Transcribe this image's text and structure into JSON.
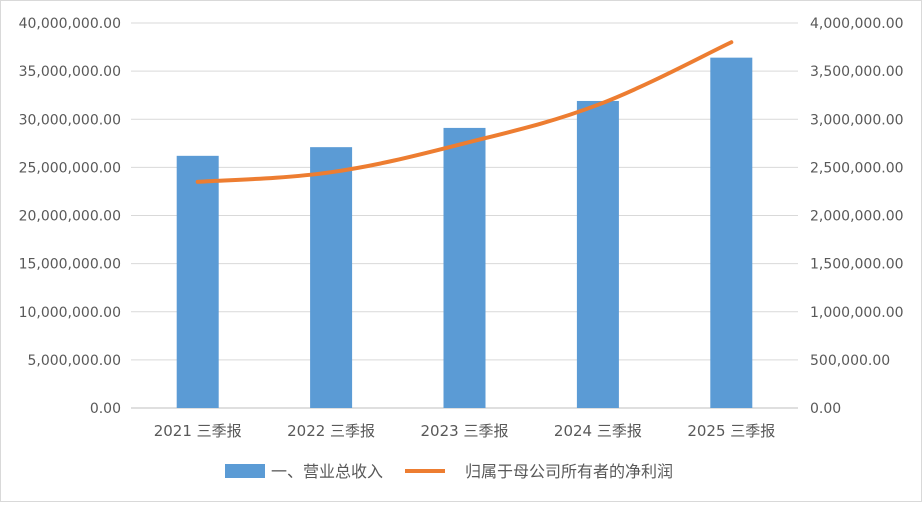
{
  "chart_data": {
    "type": "bar+line",
    "categories": [
      "2021 三季报",
      "2022 三季报",
      "2023 三季报",
      "2024 三季报",
      "2025 三季报"
    ],
    "series": [
      {
        "name": "一、营业总收入",
        "type": "bar",
        "axis": "left",
        "color": "#5b9bd5",
        "values": [
          26200000,
          27100000,
          29100000,
          31900000,
          36400000
        ]
      },
      {
        "name": "归属于母公司所有者的净利润",
        "type": "line",
        "axis": "right",
        "color": "#ed7d31",
        "values": [
          2350000,
          2450000,
          2750000,
          3150000,
          3800000
        ]
      }
    ],
    "y_left": {
      "lim": [
        0,
        40000000
      ],
      "ticks": [
        "0.00",
        "5,000,000.00",
        "10,000,000.00",
        "15,000,000.00",
        "20,000,000.00",
        "25,000,000.00",
        "30,000,000.00",
        "35,000,000.00",
        "40,000,000.00"
      ]
    },
    "y_right": {
      "lim": [
        0,
        4000000
      ],
      "ticks": [
        "0.00",
        "500,000.00",
        "1,000,000.00",
        "1,500,000.00",
        "2,000,000.00",
        "2,500,000.00",
        "3,000,000.00",
        "3,500,000.00",
        "4,000,000.00"
      ]
    },
    "grid": true,
    "legend": "bottom"
  }
}
